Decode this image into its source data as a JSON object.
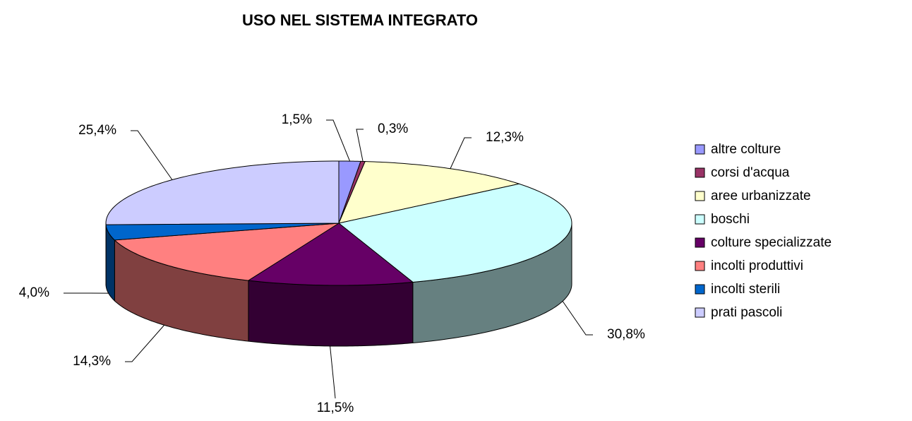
{
  "chart_data": {
    "type": "pie",
    "title": "USO NEL SISTEMA INTEGRATO",
    "categories": [
      "altre colture",
      "corsi d'acqua",
      "aree urbanizzate",
      "boschi",
      "colture specializzate",
      "incolti produttivi",
      "incolti sterili",
      "prati pascoli"
    ],
    "values": [
      1.5,
      0.3,
      12.3,
      30.8,
      11.5,
      14.3,
      4.0,
      25.4
    ],
    "value_labels": [
      "1,5%",
      "0,3%",
      "12,3%",
      "30,8%",
      "11,5%",
      "14,3%",
      "4,0%",
      "25,4%"
    ],
    "colors": [
      "#9999ff",
      "#993366",
      "#ffffcc",
      "#ccffff",
      "#660066",
      "#ff8080",
      "#0066cc",
      "#ccccff"
    ],
    "legend": "right"
  }
}
